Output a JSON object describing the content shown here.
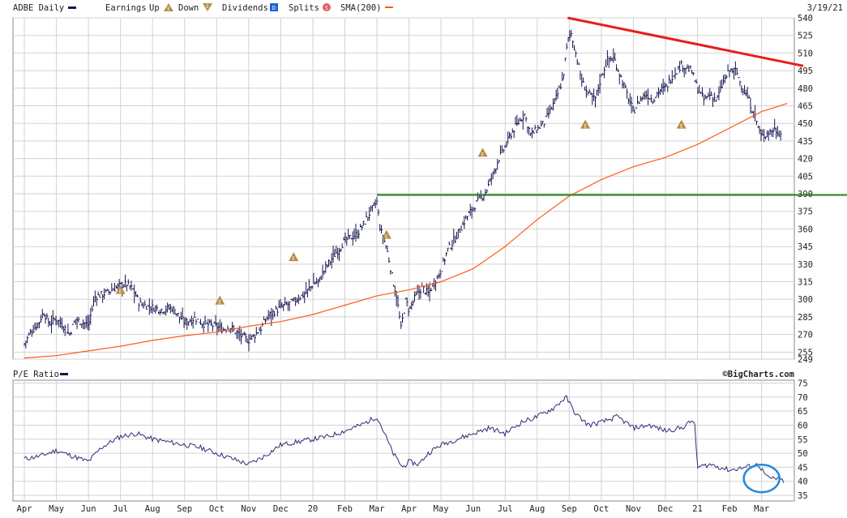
{
  "header": {
    "ticker_label": "ADBE Daily",
    "earnings_label": "Earnings",
    "up_label": "Up",
    "down_label": "Down",
    "dividends_label": "Dividends",
    "splits_label": "Splits",
    "sma_label": "SMA(200)",
    "date": "3/19/21",
    "dividend_glyph": "D",
    "split_glyph": "S",
    "earnings_glyph": "E"
  },
  "lower_panel": {
    "title": "P/E Ratio",
    "credit": "©BigCharts.com"
  },
  "colors": {
    "price": "#141450",
    "sma": "#ff5a14",
    "resistance": "#e61e1e",
    "support": "#1e821e",
    "pe_line": "#2c2c78",
    "highlight_circle": "#2288dd",
    "earnings_marker": "#b48c46",
    "grid": "#d2d2d2"
  },
  "chart_data": [
    {
      "type": "ohlc",
      "name": "price",
      "x_ticks": [
        "Apr",
        "May",
        "Jun",
        "Jul",
        "Aug",
        "Sep",
        "Oct",
        "Nov",
        "Dec",
        "20",
        "Feb",
        "Mar",
        "Apr",
        "May",
        "Jun",
        "Jul",
        "Aug",
        "Sep",
        "Oct",
        "Nov",
        "Dec",
        "21",
        "Feb",
        "Mar"
      ],
      "y_ticks": [
        249,
        255,
        270,
        285,
        300,
        315,
        330,
        345,
        360,
        375,
        390,
        405,
        420,
        435,
        450,
        465,
        480,
        495,
        510,
        525,
        540
      ],
      "ylim": [
        249,
        540
      ],
      "price_path": [
        [
          0.0,
          262
        ],
        [
          0.2,
          272
        ],
        [
          0.45,
          280
        ],
        [
          0.6,
          289
        ],
        [
          0.78,
          279
        ],
        [
          1.0,
          284
        ],
        [
          1.2,
          278
        ],
        [
          1.4,
          270
        ],
        [
          1.6,
          283
        ],
        [
          2.0,
          278
        ],
        [
          2.2,
          302
        ],
        [
          2.6,
          306
        ],
        [
          3.0,
          312
        ],
        [
          3.2,
          313
        ],
        [
          3.4,
          308
        ],
        [
          3.6,
          296
        ],
        [
          4.0,
          293
        ],
        [
          4.3,
          291
        ],
        [
          4.6,
          293
        ],
        [
          5.0,
          280
        ],
        [
          5.3,
          284
        ],
        [
          5.6,
          279
        ],
        [
          6.0,
          277
        ],
        [
          6.2,
          274
        ],
        [
          6.4,
          277
        ],
        [
          6.6,
          272
        ],
        [
          6.8,
          268
        ],
        [
          7.0,
          265
        ],
        [
          7.2,
          270
        ],
        [
          7.4,
          276
        ],
        [
          7.6,
          286
        ],
        [
          8.0,
          293
        ],
        [
          8.4,
          298
        ],
        [
          8.8,
          306
        ],
        [
          9.0,
          313
        ],
        [
          9.2,
          316
        ],
        [
          9.4,
          327
        ],
        [
          9.6,
          335
        ],
        [
          10.0,
          350
        ],
        [
          10.4,
          356
        ],
        [
          10.6,
          365
        ],
        [
          10.8,
          375
        ],
        [
          11.0,
          383
        ],
        [
          11.1,
          360
        ],
        [
          11.2,
          352
        ],
        [
          11.3,
          344
        ],
        [
          11.4,
          330
        ],
        [
          11.5,
          315
        ],
        [
          11.6,
          305
        ],
        [
          11.75,
          275
        ],
        [
          11.9,
          300
        ],
        [
          12.0,
          290
        ],
        [
          12.2,
          302
        ],
        [
          12.4,
          310
        ],
        [
          12.6,
          305
        ],
        [
          12.8,
          315
        ],
        [
          13.0,
          325
        ],
        [
          13.2,
          342
        ],
        [
          13.4,
          350
        ],
        [
          13.6,
          360
        ],
        [
          13.8,
          370
        ],
        [
          14.0,
          378
        ],
        [
          14.2,
          385
        ],
        [
          14.4,
          392
        ],
        [
          14.6,
          405
        ],
        [
          14.8,
          420
        ],
        [
          15.0,
          430
        ],
        [
          15.2,
          442
        ],
        [
          15.4,
          450
        ],
        [
          15.6,
          458
        ],
        [
          15.8,
          440
        ],
        [
          16.0,
          445
        ],
        [
          16.2,
          450
        ],
        [
          16.4,
          460
        ],
        [
          16.6,
          472
        ],
        [
          16.8,
          488
        ],
        [
          16.95,
          520
        ],
        [
          17.05,
          528
        ],
        [
          17.2,
          510
        ],
        [
          17.4,
          485
        ],
        [
          17.6,
          475
        ],
        [
          17.8,
          470
        ],
        [
          18.0,
          490
        ],
        [
          18.2,
          505
        ],
        [
          18.4,
          505
        ],
        [
          18.6,
          490
        ],
        [
          18.8,
          475
        ],
        [
          19.0,
          460
        ],
        [
          19.2,
          470
        ],
        [
          19.4,
          475
        ],
        [
          19.6,
          470
        ],
        [
          19.8,
          478
        ],
        [
          20.0,
          480
        ],
        [
          20.2,
          490
        ],
        [
          20.5,
          500
        ],
        [
          20.8,
          495
        ],
        [
          21.0,
          480
        ],
        [
          21.2,
          470
        ],
        [
          21.4,
          475
        ],
        [
          21.6,
          470
        ],
        [
          21.8,
          485
        ],
        [
          22.0,
          495
        ],
        [
          22.2,
          495
        ],
        [
          22.4,
          480
        ],
        [
          22.6,
          470
        ],
        [
          22.8,
          455
        ],
        [
          23.0,
          438
        ],
        [
          23.2,
          442
        ],
        [
          23.4,
          445
        ],
        [
          23.6,
          441
        ]
      ],
      "sma_200": [
        [
          0.0,
          250
        ],
        [
          1.0,
          252
        ],
        [
          2.0,
          256
        ],
        [
          3.0,
          260
        ],
        [
          4.0,
          265
        ],
        [
          5.0,
          269
        ],
        [
          6.0,
          272
        ],
        [
          7.0,
          277
        ],
        [
          8.0,
          281
        ],
        [
          9.0,
          287
        ],
        [
          10.0,
          295
        ],
        [
          11.0,
          303
        ],
        [
          12.0,
          308
        ],
        [
          13.0,
          315
        ],
        [
          14.0,
          326
        ],
        [
          15.0,
          345
        ],
        [
          16.0,
          368
        ],
        [
          17.0,
          388
        ],
        [
          18.0,
          402
        ],
        [
          19.0,
          413
        ],
        [
          20.0,
          421
        ],
        [
          21.0,
          432
        ],
        [
          22.0,
          446
        ],
        [
          23.0,
          460
        ],
        [
          23.8,
          467
        ]
      ],
      "resistance_line": [
        [
          16.95,
          540
        ],
        [
          24.3,
          499
        ]
      ],
      "support_level": 389,
      "support_from_x": 11.0,
      "earnings_markers": [
        {
          "x": 3.0,
          "y": 308
        },
        {
          "x": 6.1,
          "y": 299
        },
        {
          "x": 8.4,
          "y": 336
        },
        {
          "x": 11.3,
          "y": 355
        },
        {
          "x": 14.3,
          "y": 425
        },
        {
          "x": 17.5,
          "y": 449
        },
        {
          "x": 20.5,
          "y": 449
        }
      ]
    },
    {
      "type": "line",
      "name": "pe_ratio",
      "x_ticks": [
        "Apr",
        "May",
        "Jun",
        "Jul",
        "Aug",
        "Sep",
        "Oct",
        "Nov",
        "Dec",
        "20",
        "Feb",
        "Mar",
        "Apr",
        "May",
        "Jun",
        "Jul",
        "Aug",
        "Sep",
        "Oct",
        "Nov",
        "Dec",
        "21",
        "Feb",
        "Mar"
      ],
      "y_ticks": [
        35,
        40,
        45,
        50,
        55,
        60,
        65,
        70,
        75
      ],
      "ylim": [
        33,
        76
      ],
      "points": [
        [
          0.0,
          48
        ],
        [
          0.5,
          49
        ],
        [
          1.0,
          51
        ],
        [
          1.5,
          49
        ],
        [
          2.0,
          47
        ],
        [
          2.4,
          52
        ],
        [
          3.0,
          56
        ],
        [
          3.5,
          57
        ],
        [
          4.0,
          55
        ],
        [
          4.5,
          54
        ],
        [
          5.0,
          53
        ],
        [
          5.5,
          52
        ],
        [
          6.0,
          50
        ],
        [
          6.5,
          48
        ],
        [
          7.0,
          46
        ],
        [
          7.5,
          49
        ],
        [
          8.0,
          53
        ],
        [
          8.5,
          54
        ],
        [
          9.0,
          55
        ],
        [
          9.5,
          56
        ],
        [
          10.0,
          58
        ],
        [
          10.5,
          60
        ],
        [
          11.0,
          63
        ],
        [
          11.2,
          58
        ],
        [
          11.5,
          50
        ],
        [
          11.8,
          45
        ],
        [
          12.0,
          47
        ],
        [
          12.3,
          46
        ],
        [
          12.6,
          50
        ],
        [
          13.0,
          53
        ],
        [
          13.5,
          55
        ],
        [
          14.0,
          57
        ],
        [
          14.5,
          59
        ],
        [
          15.0,
          57
        ],
        [
          15.5,
          61
        ],
        [
          16.0,
          63
        ],
        [
          16.5,
          66
        ],
        [
          16.9,
          70
        ],
        [
          17.2,
          64
        ],
        [
          17.6,
          60
        ],
        [
          18.0,
          61
        ],
        [
          18.5,
          63
        ],
        [
          19.0,
          59
        ],
        [
          19.5,
          60
        ],
        [
          20.0,
          58
        ],
        [
          20.5,
          59
        ],
        [
          20.9,
          62
        ],
        [
          21.0,
          45
        ],
        [
          21.4,
          46
        ],
        [
          22.0,
          44
        ],
        [
          22.5,
          45
        ],
        [
          22.9,
          46
        ],
        [
          23.2,
          41
        ],
        [
          23.5,
          41
        ],
        [
          23.7,
          40
        ]
      ],
      "highlight": {
        "x": 23.0,
        "y": 41
      }
    }
  ]
}
